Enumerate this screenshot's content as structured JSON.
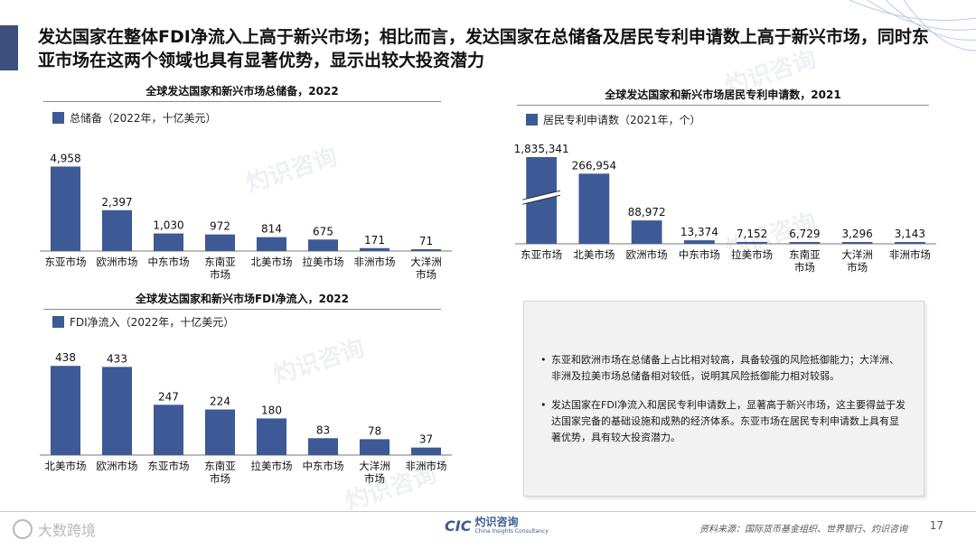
{
  "header": {
    "title": "发达国家在整体FDI净流入上高于新兴市场；相比而言，发达国家在总储备及居民专利申请数上高于新兴市场，同时东亚市场在这两个领域也具有显著优势，显示出较大投资潜力"
  },
  "colors": {
    "bar": "#3d5a96",
    "accent": "#3d4f7c"
  },
  "chart_data": [
    {
      "type": "bar",
      "title": "全球发达国家和新兴市场总储备，2022",
      "legend": "总储备（2022年，十亿美元）",
      "categories": [
        "东亚市场",
        "欧洲市场",
        "中东市场",
        "东南亚市场",
        "北美市场",
        "拉美市场",
        "非洲市场",
        "大洋洲市场"
      ],
      "values": [
        4958,
        2397,
        1030,
        972,
        814,
        675,
        171,
        71
      ],
      "value_labels": [
        "4,958",
        "2,397",
        "1,030",
        "972",
        "814",
        "675",
        "171",
        "71"
      ],
      "ylim": [
        0,
        5300
      ]
    },
    {
      "type": "bar",
      "title": "全球发达国家和新兴市场FDI净流入，2022",
      "legend": "FDI净流入（2022年，十亿美元）",
      "categories": [
        "北美市场",
        "欧洲市场",
        "东亚市场",
        "东南亚市场",
        "拉美市场",
        "中东市场",
        "大洋洲市场",
        "非洲市场"
      ],
      "values": [
        438,
        433,
        247,
        224,
        180,
        83,
        78,
        37
      ],
      "value_labels": [
        "438",
        "433",
        "247",
        "224",
        "180",
        "83",
        "78",
        "37"
      ],
      "ylim": [
        0,
        470
      ]
    },
    {
      "type": "bar",
      "title": "全球发达国家和新兴市场居民专利申请数，2021",
      "legend": "居民专利申请数（2021年，个）",
      "categories": [
        "东亚市场",
        "北美市场",
        "欧洲市场",
        "中东市场",
        "拉美市场",
        "东南亚市场",
        "大洋洲市场",
        "非洲市场"
      ],
      "values": [
        1835341,
        266954,
        88972,
        13374,
        7152,
        6729,
        3296,
        3143
      ],
      "value_labels": [
        "1,835,341",
        "266,954",
        "88,972",
        "13,374",
        "7,152",
        "6,729",
        "3,296",
        "3,143"
      ],
      "ylim": [
        0,
        330000
      ],
      "axis_break": true
    }
  ],
  "notes": [
    "东亚和欧洲市场在总储备上占比相对较高，具备较强的风险抵御能力；大洋洲、非洲及拉美市场总储备相对较低，说明其风险抵御能力相对较弱。",
    "发达国家在FDI净流入和居民专利申请数上，显著高于新兴市场，这主要得益于发达国家完备的基础设施和成熟的经济体系。东亚市场在居民专利申请数上具有显著优势，具有较大投资潜力。"
  ],
  "footer": {
    "source": "资料来源：国际货币基金组织、世界银行、灼识咨询",
    "page": "17",
    "brand_cic": "CIC",
    "brand_cn": "灼识咨询",
    "brand_en": "China Insights Consultancy",
    "wm_brand": "大数跨境"
  },
  "watermark_text": "灼识咨询"
}
